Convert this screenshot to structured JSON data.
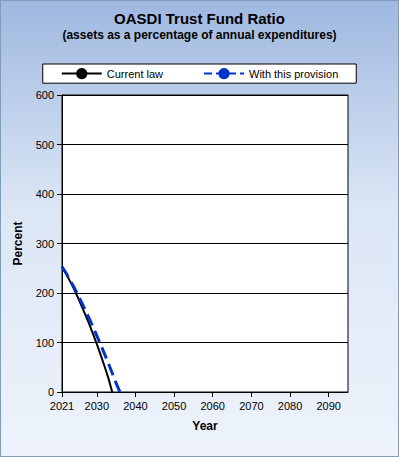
{
  "chart_data": {
    "type": "line",
    "title": "OASDI Trust Fund Ratio",
    "subtitle": "(assets as a percentage of annual expenditures)",
    "x_label": "Year",
    "y_label": "Percent",
    "x": [
      2021,
      2022,
      2023,
      2024,
      2025,
      2026,
      2027,
      2028,
      2029,
      2030,
      2031,
      2032,
      2033,
      2034,
      2035,
      2036
    ],
    "series": [
      {
        "name": "Current law",
        "color": "#000000",
        "line_style": "solid",
        "values": [
          253,
          240,
          225,
          210,
          193,
          175,
          157,
          138,
          118,
          97,
          75,
          52,
          28,
          0,
          null,
          null
        ]
      },
      {
        "name": "With this provision",
        "color": "#0033cc",
        "line_style": "dashed",
        "values": [
          253,
          241,
          227,
          213,
          198,
          182,
          166,
          149,
          132,
          114,
          96,
          77,
          58,
          38,
          18,
          0
        ]
      }
    ],
    "xlim": [
      2021,
      2095
    ],
    "xticks": [
      2021,
      2030,
      2040,
      2050,
      2060,
      2070,
      2080,
      2090
    ],
    "ylim": [
      0,
      600
    ],
    "yticks": [
      0,
      100,
      200,
      300,
      400,
      500,
      600
    ],
    "grid": true,
    "legend": "top"
  }
}
